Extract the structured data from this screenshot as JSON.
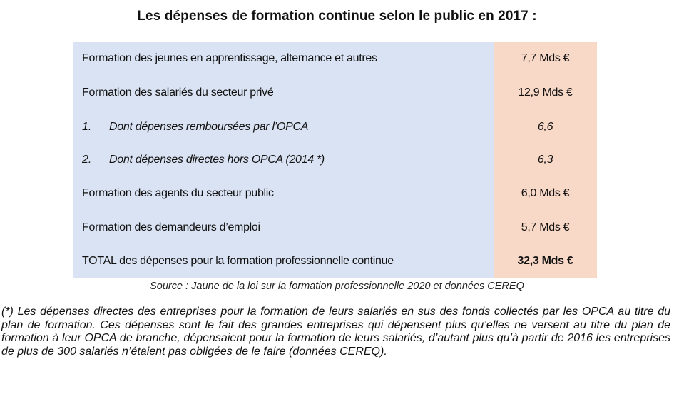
{
  "title": "Les dépenses de formation continue selon le public en 2017 :",
  "table": {
    "rows": [
      {
        "label": "Formation des jeunes en apprentissage, alternance et autres",
        "value": "7,7 Mds €"
      },
      {
        "label": "Formation des salariés du secteur privé",
        "value": "12,9 Mds €"
      },
      {
        "num": "1.",
        "label": "Dont dépenses remboursées par l’OPCA",
        "value": "6,6"
      },
      {
        "num": "2.",
        "label": "Dont dépenses directes hors OPCA (2014 *)",
        "value": "6,3"
      },
      {
        "label": "Formation des agents du secteur public",
        "value": "6,0 Mds €"
      },
      {
        "label": "Formation des demandeurs d’emploi",
        "value": "5,7 Mds €"
      },
      {
        "label": "TOTAL des dépenses pour la formation professionnelle continue",
        "value": "32,3 Mds €"
      }
    ]
  },
  "source": "Source : Jaune de la loi sur la formation professionnelle 2020 et données CEREQ",
  "note": "(*) Les dépenses directes des entreprises pour la formation de leurs salariés en sus des fonds collectés par les OPCA au titre du plan de formation. Ces dépenses sont le fait des grandes entreprises qui dépensent plus qu’elles ne versent au titre du plan de formation à leur OPCA de branche, dépensaient pour la formation de leurs salariés, d’autant plus qu’à partir de 2016 les entreprises de plus de 300 salariés n’étaient pas obligées de le faire (données CEREQ)."
}
